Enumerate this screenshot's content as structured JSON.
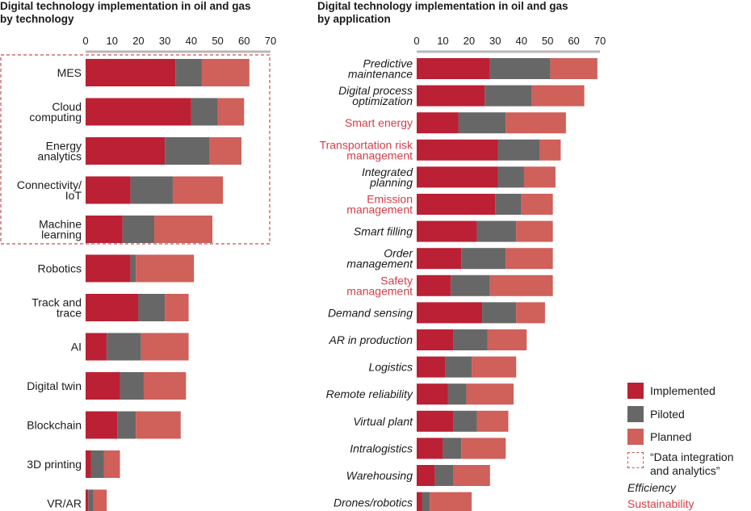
{
  "chart_data": [
    {
      "type": "bar",
      "orientation": "horizontal",
      "stacked": true,
      "title": [
        "Digital technology implementation in oil and gas",
        "by technology"
      ],
      "xlim": [
        0,
        70
      ],
      "xticks": [
        "0",
        "10",
        "20",
        "30",
        "40",
        "50",
        "60",
        "70"
      ],
      "categories": [
        [
          "MES"
        ],
        [
          "Cloud",
          "computing"
        ],
        [
          "Energy",
          "analytics"
        ],
        [
          "Connectivity/",
          "IoT"
        ],
        [
          "Machine",
          "learning"
        ],
        [
          "Robotics"
        ],
        [
          "Track and",
          "trace"
        ],
        [
          "AI"
        ],
        [
          "Digital twin"
        ],
        [
          "Blockchain"
        ],
        [
          "3D printing"
        ],
        [
          "VR/AR"
        ]
      ],
      "highlight_group": [
        0,
        1,
        2,
        3,
        4
      ],
      "series": [
        {
          "name": "Implemented",
          "values": [
            34,
            40,
            30,
            17,
            14,
            17,
            20,
            8,
            13,
            12,
            2,
            1
          ]
        },
        {
          "name": "Piloted",
          "values": [
            10,
            10,
            17,
            16,
            12,
            2,
            10,
            13,
            9,
            7,
            5,
            2
          ]
        },
        {
          "name": "Planned",
          "values": [
            18,
            10,
            12,
            19,
            22,
            22,
            9,
            18,
            16,
            17,
            6,
            5
          ]
        }
      ]
    },
    {
      "type": "bar",
      "orientation": "horizontal",
      "stacked": true,
      "title": [
        "Digital technology implementation in oil and gas",
        "by application"
      ],
      "xlim": [
        0,
        70
      ],
      "xticks": [
        "0",
        "10",
        "20",
        "30",
        "40",
        "50",
        "60",
        "70"
      ],
      "categories": [
        {
          "lines": [
            "Predictive",
            "maintenance"
          ],
          "group": "Efficiency"
        },
        {
          "lines": [
            "Digital process",
            "optimization"
          ],
          "group": "Efficiency"
        },
        {
          "lines": [
            "Smart energy"
          ],
          "group": "Sustainability"
        },
        {
          "lines": [
            "Transportation risk",
            "management"
          ],
          "group": "Sustainability"
        },
        {
          "lines": [
            "Integrated",
            "planning"
          ],
          "group": "Efficiency"
        },
        {
          "lines": [
            "Emission",
            "management"
          ],
          "group": "Sustainability"
        },
        {
          "lines": [
            "Smart filling"
          ],
          "group": "Efficiency"
        },
        {
          "lines": [
            "Order",
            "management"
          ],
          "group": "Efficiency"
        },
        {
          "lines": [
            "Safety",
            "management"
          ],
          "group": "Sustainability"
        },
        {
          "lines": [
            "Demand sensing"
          ],
          "group": "Efficiency"
        },
        {
          "lines": [
            "AR in production"
          ],
          "group": "Efficiency"
        },
        {
          "lines": [
            "Logistics"
          ],
          "group": "Efficiency"
        },
        {
          "lines": [
            "Remote reliability"
          ],
          "group": "Efficiency"
        },
        {
          "lines": [
            "Virtual plant"
          ],
          "group": "Efficiency"
        },
        {
          "lines": [
            "Intralogistics"
          ],
          "group": "Efficiency"
        },
        {
          "lines": [
            "Warehousing"
          ],
          "group": "Efficiency"
        },
        {
          "lines": [
            "Drones/robotics"
          ],
          "group": "Efficiency"
        }
      ],
      "series": [
        {
          "name": "Implemented",
          "values": [
            28,
            26,
            16,
            31,
            31,
            30,
            23,
            17,
            13,
            25,
            14,
            11,
            12,
            14,
            10,
            7,
            2
          ]
        },
        {
          "name": "Piloted",
          "values": [
            23,
            18,
            18,
            16,
            10,
            10,
            15,
            17,
            15,
            13,
            13,
            10,
            7,
            9,
            7,
            7,
            3
          ]
        },
        {
          "name": "Planned",
          "values": [
            18,
            20,
            23,
            8,
            12,
            12,
            14,
            18,
            24,
            11,
            15,
            17,
            18,
            12,
            17,
            14,
            16
          ]
        }
      ]
    }
  ],
  "legend": {
    "implemented": "Implemented",
    "piloted": "Piloted",
    "planned": "Planned",
    "dashed": [
      "“Data integration",
      "and analytics”"
    ],
    "efficiency": "Efficiency",
    "sustainability": "Sustainability"
  },
  "colors": {
    "implemented": "#bb2034",
    "piloted": "#676767",
    "planned": "#cf605a",
    "axis": "#b8b8b8",
    "sustainability_text": "#d23f4a",
    "dashed_box": "#c8524c"
  }
}
